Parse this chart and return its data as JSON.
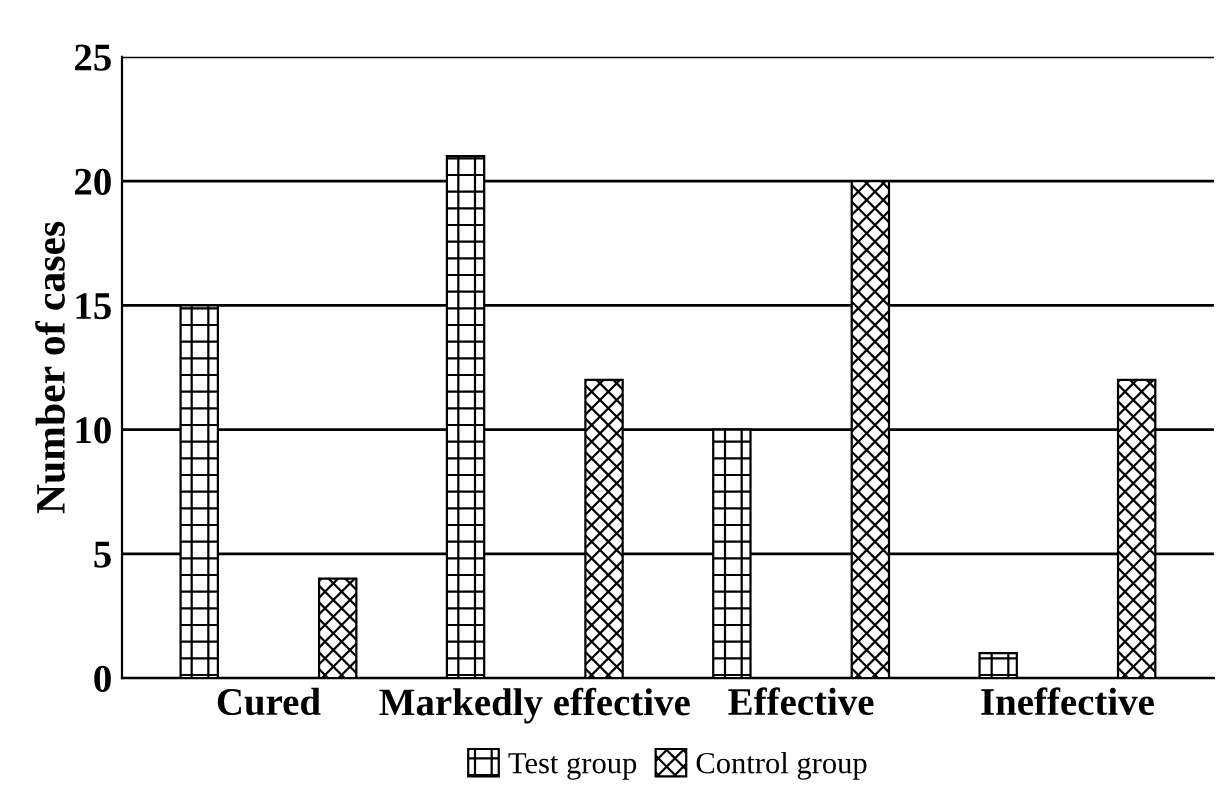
{
  "chart_data": {
    "type": "bar",
    "ylabel": "Number of cases",
    "categories": [
      "Cured",
      "Markedly effective",
      "Effective",
      "Ineffective"
    ],
    "series": [
      {
        "name": "Test group",
        "color": "#000000",
        "values": [
          15,
          21,
          10,
          1
        ]
      },
      {
        "name": "Control group",
        "color": "#000000",
        "values": [
          4,
          12,
          20,
          12
        ]
      }
    ],
    "ylim": [
      0,
      25
    ],
    "yticks": [
      0,
      5,
      10,
      15,
      20,
      25
    ],
    "grid": "y",
    "legend": "bottom"
  }
}
